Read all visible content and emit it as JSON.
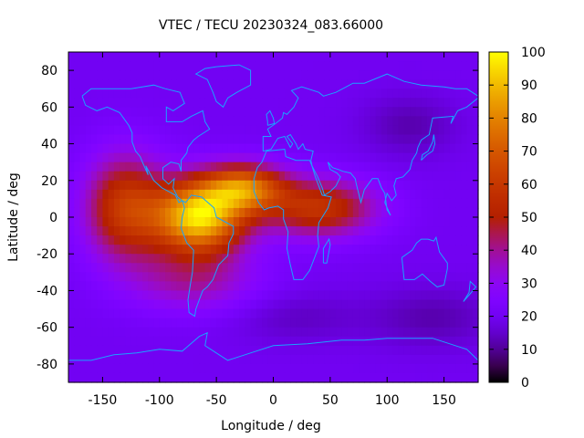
{
  "chart_data": {
    "type": "heatmap",
    "title": "VTEC / TECU 20230324_083.66000",
    "xlabel": "Longitude / deg",
    "ylabel": "Latitude / deg",
    "xlim": [
      -180,
      180
    ],
    "ylim": [
      -90,
      90
    ],
    "xticks": [
      -150,
      -100,
      -50,
      0,
      50,
      100,
      150
    ],
    "yticks": [
      -80,
      -60,
      -40,
      -20,
      0,
      20,
      40,
      60,
      80
    ],
    "xtick_labels": [
      "-150",
      "-100",
      "-50",
      "0",
      "50",
      "100",
      "150"
    ],
    "ytick_labels": [
      "-80",
      "-60",
      "-40",
      "-20",
      "0",
      "20",
      "40",
      "60",
      "80"
    ],
    "colorbar": {
      "min": 0,
      "max": 100,
      "ticks": [
        0,
        10,
        20,
        30,
        40,
        50,
        60,
        70,
        80,
        90,
        100
      ],
      "tick_labels": [
        "0",
        "10",
        "20",
        "30",
        "40",
        "50",
        "60",
        "70",
        "80",
        "90",
        "100"
      ],
      "colormap": "gnuplot-pm3d-black-purple-red-yellow"
    },
    "grid_resolution_deg": [
      5,
      5
    ],
    "field_model": {
      "background_tecu": 20,
      "features": [
        {
          "name": "equatorial-anomaly-core",
          "lon": -65,
          "lat": 0,
          "amplitude_tecu": 75,
          "lon_sigma_deg": 28,
          "lat_sigma_deg": 14
        },
        {
          "name": "equatorial-anomaly-north-crest",
          "lon": -25,
          "lat": 16,
          "amplitude_tecu": 50,
          "lon_sigma_deg": 25,
          "lat_sigma_deg": 9
        },
        {
          "name": "pacific-extension",
          "lon": -130,
          "lat": 5,
          "amplitude_tecu": 40,
          "lon_sigma_deg": 25,
          "lat_sigma_deg": 20
        },
        {
          "name": "africa-indian-ocean-extension",
          "lon": 40,
          "lat": 5,
          "amplitude_tecu": 38,
          "lon_sigma_deg": 35,
          "lat_sigma_deg": 11
        },
        {
          "name": "southern-daytime-band",
          "lon": -70,
          "lat": -35,
          "amplitude_tecu": 18,
          "lon_sigma_deg": 40,
          "lat_sigma_deg": 12
        },
        {
          "name": "asia-night-trough",
          "lon": 120,
          "lat": 50,
          "amplitude_tecu": -8,
          "lon_sigma_deg": 30,
          "lat_sigma_deg": 12
        },
        {
          "name": "south-pacific-night-trough",
          "lon": 140,
          "lat": -55,
          "amplitude_tecu": -8,
          "lon_sigma_deg": 40,
          "lat_sigma_deg": 12
        },
        {
          "name": "southern-atlantic-trough",
          "lon": 20,
          "lat": -55,
          "amplitude_tecu": -6,
          "lon_sigma_deg": 40,
          "lat_sigma_deg": 10
        }
      ],
      "approximate_peak_tecu": 98,
      "approximate_minimum_tecu": 10
    },
    "overlay": "coastlines"
  }
}
